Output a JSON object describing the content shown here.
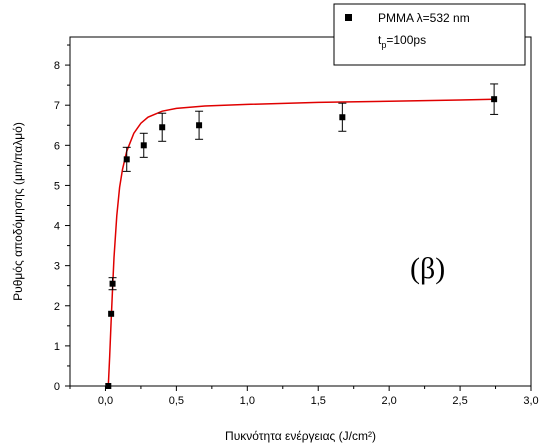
{
  "chart_data": {
    "type": "scatter",
    "xlabel": "Πυκνότητα ενέργειας (J/cm²)",
    "ylabel": "Ρυθμός αποδόμησης (μm/παλμό)",
    "xlim": [
      -0.25,
      3.0
    ],
    "ylim": [
      0,
      8.7
    ],
    "x_ticks": [
      "0,0",
      "0,5",
      "1,0",
      "1,5",
      "2,0",
      "2,5",
      "3,0"
    ],
    "x_tick_values": [
      0.0,
      0.5,
      1.0,
      1.5,
      2.0,
      2.5,
      3.0
    ],
    "y_ticks": [
      "0",
      "1",
      "2",
      "3",
      "4",
      "5",
      "6",
      "7",
      "8"
    ],
    "y_tick_values": [
      0,
      1,
      2,
      3,
      4,
      5,
      6,
      7,
      8
    ],
    "panel_label": "(β)",
    "legend": {
      "position": "top-right",
      "series_label": "PMMA λ=532 nm",
      "condition_prefix": "t",
      "condition_sub": "p",
      "condition_value": "=100ps"
    },
    "series": [
      {
        "name": "PMMA λ=532 nm",
        "marker": "square",
        "color": "#000000",
        "x": [
          0.02,
          0.04,
          0.05,
          0.15,
          0.27,
          0.4,
          0.66,
          1.67,
          2.74
        ],
        "y": [
          0.0,
          1.8,
          2.55,
          5.65,
          6.0,
          6.45,
          6.5,
          6.7,
          7.15
        ],
        "yerr": [
          0.0,
          0.0,
          0.15,
          0.3,
          0.3,
          0.35,
          0.35,
          0.35,
          0.38
        ]
      }
    ],
    "fit": {
      "color": "#e00000",
      "x": [
        0.02,
        0.03,
        0.04,
        0.05,
        0.06,
        0.08,
        0.1,
        0.12,
        0.15,
        0.2,
        0.25,
        0.3,
        0.4,
        0.5,
        0.7,
        1.0,
        1.5,
        2.0,
        2.5,
        2.74
      ],
      "y": [
        0.0,
        0.75,
        1.6,
        2.45,
        3.2,
        4.25,
        4.95,
        5.4,
        5.85,
        6.3,
        6.55,
        6.7,
        6.85,
        6.92,
        6.98,
        7.02,
        7.07,
        7.1,
        7.13,
        7.15
      ]
    }
  }
}
